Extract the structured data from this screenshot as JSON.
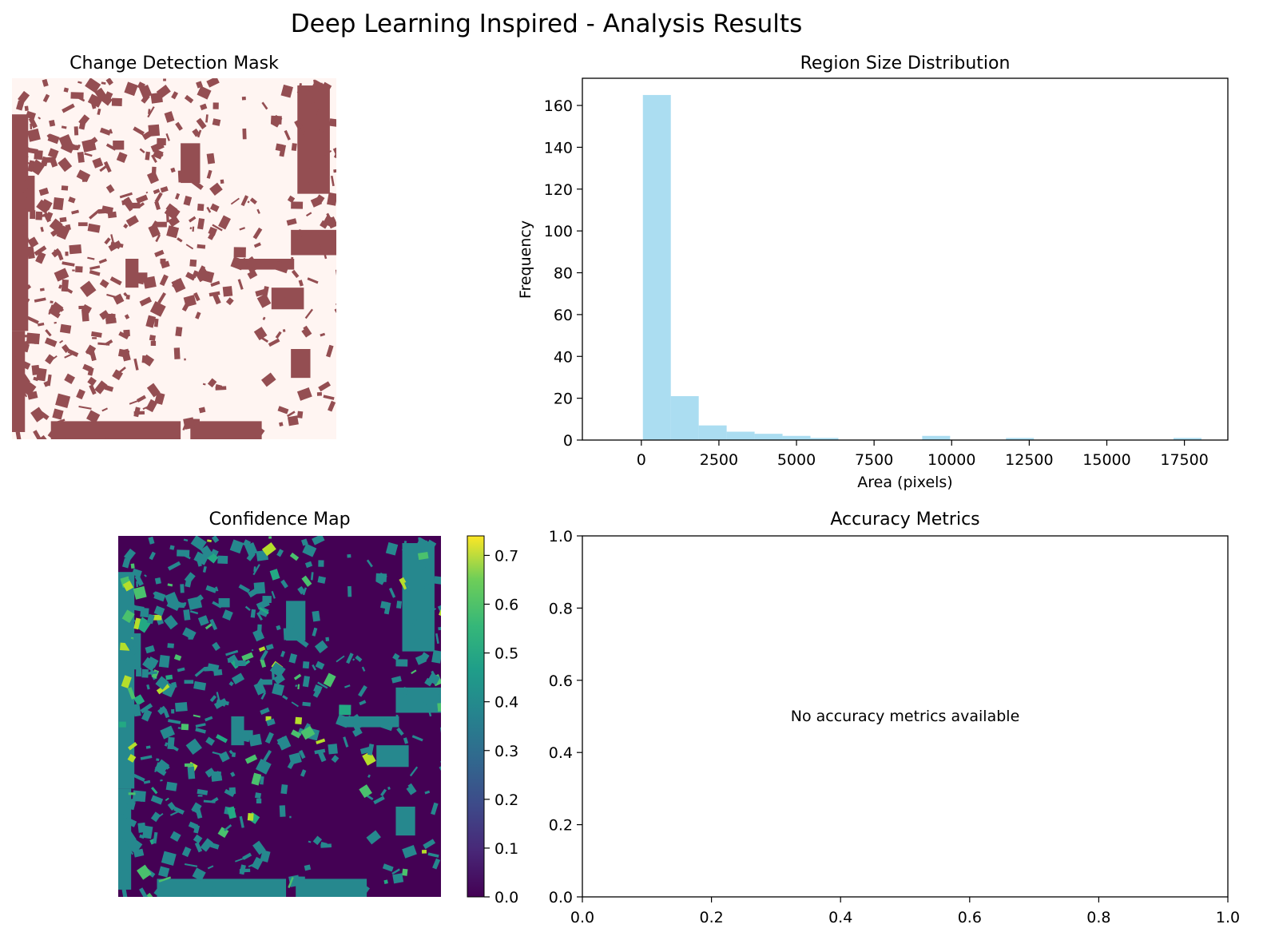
{
  "figure": {
    "title": "Deep Learning Inspired - Analysis Results"
  },
  "colors": {
    "mask_background": "#fff5f2",
    "mask_change": "#944e52",
    "histogram_bar": "#87ceeb",
    "histogram_bar_opacity": 0.7
  },
  "chart_data": [
    {
      "panel": "change-detection-mask",
      "type": "heatmap",
      "title": "Change Detection Mask",
      "axes_visible": false,
      "colormap": "binary (unchanged / changed)"
    },
    {
      "panel": "region-size-distribution",
      "type": "bar",
      "title": "Region Size Distribution",
      "xlabel": "Area (pixels)",
      "ylabel": "Frequency",
      "xlim": [
        -1900,
        18900
      ],
      "ylim": [
        0,
        173
      ],
      "xticks": [
        0,
        2500,
        5000,
        7500,
        10000,
        12500,
        15000,
        17500
      ],
      "yticks": [
        0,
        20,
        40,
        60,
        80,
        100,
        120,
        140,
        160
      ],
      "bin_start": 50,
      "bin_width": 900,
      "values": [
        165,
        21,
        7,
        4,
        3,
        2,
        1,
        0,
        0,
        0,
        2,
        0,
        0,
        1,
        0,
        0,
        0,
        0,
        0,
        1
      ],
      "bar_color": "#87ceeb"
    },
    {
      "panel": "confidence-map",
      "type": "heatmap",
      "title": "Confidence Map",
      "axes_visible": false,
      "colormap": "viridis",
      "colorbar_range": [
        0.0,
        0.74
      ],
      "colorbar_ticks": [
        "0.0",
        "0.1",
        "0.2",
        "0.3",
        "0.4",
        "0.5",
        "0.6",
        "0.7"
      ]
    },
    {
      "panel": "accuracy-metrics",
      "type": "table",
      "title": "Accuracy Metrics",
      "xlim": [
        0,
        1
      ],
      "ylim": [
        0,
        1
      ],
      "xticks": [
        "0.0",
        "0.2",
        "0.4",
        "0.6",
        "0.8",
        "1.0"
      ],
      "yticks": [
        "0.0",
        "0.2",
        "0.4",
        "0.6",
        "0.8",
        "1.0"
      ],
      "message": "No accuracy metrics available"
    }
  ]
}
